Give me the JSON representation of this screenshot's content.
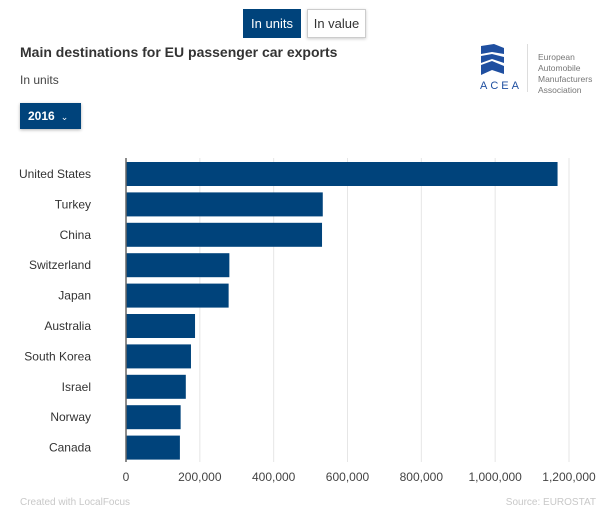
{
  "toggles": {
    "units": "In units",
    "value": "In value"
  },
  "title": "Main destinations for EU passenger car exports",
  "subtitle": "In units",
  "year_select": {
    "value": "2016"
  },
  "logo": {
    "acronym": "ACEA",
    "lines": [
      "European",
      "Automobile",
      "Manufacturers",
      "Association"
    ]
  },
  "footer": {
    "created": "Created with LocalFocus",
    "source": "Source: EUROSTAT"
  },
  "colors": {
    "bar": "#00437b",
    "grid": "#e6e6e6"
  },
  "chart_data": {
    "type": "bar",
    "orientation": "horizontal",
    "title": "Main destinations for EU passenger car exports",
    "subtitle": "In units",
    "categories": [
      "United States",
      "Turkey",
      "China",
      "Switzerland",
      "Japan",
      "Australia",
      "South Korea",
      "Israel",
      "Norway",
      "Canada"
    ],
    "values": [
      1169000,
      533000,
      531000,
      280000,
      278000,
      187000,
      176000,
      162000,
      148000,
      146000
    ],
    "xlim": [
      0,
      1200000
    ],
    "xticks": [
      0,
      200000,
      400000,
      600000,
      800000,
      1000000,
      1200000
    ],
    "xtick_labels": [
      "0",
      "200,000",
      "400,000",
      "600,000",
      "800,000",
      "1,000,000",
      "1,200,000"
    ],
    "grid": true
  }
}
